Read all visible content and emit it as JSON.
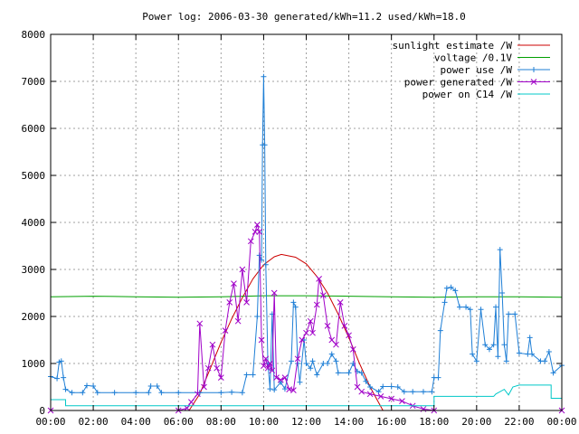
{
  "chart_data": {
    "type": "line",
    "title": "Power log: 2006-03-30 generated/kWh=11.2 used/kWh=18.0",
    "xlabel": "",
    "ylabel": "",
    "ylim": [
      0,
      8000
    ],
    "xlim": [
      0,
      24
    ],
    "grid": true,
    "legend_position": "top-right",
    "x_ticks": [
      "00:00",
      "02:00",
      "04:00",
      "06:00",
      "08:00",
      "10:00",
      "12:00",
      "14:00",
      "16:00",
      "18:00",
      "20:00",
      "22:00",
      "00:00"
    ],
    "y_ticks": [
      "0",
      "1000",
      "2000",
      "3000",
      "4000",
      "5000",
      "6000",
      "7000",
      "8000"
    ],
    "series": [
      {
        "name": "sunlight estimate /W",
        "color": "#cc0000",
        "style": "line",
        "points": [
          [
            6.5,
            0
          ],
          [
            7,
            350
          ],
          [
            7.5,
            900
          ],
          [
            8,
            1450
          ],
          [
            8.5,
            1950
          ],
          [
            9,
            2400
          ],
          [
            9.5,
            2800
          ],
          [
            10,
            3100
          ],
          [
            10.5,
            3270
          ],
          [
            10.83,
            3320
          ],
          [
            11.5,
            3260
          ],
          [
            12,
            3120
          ],
          [
            12.5,
            2850
          ],
          [
            13,
            2500
          ],
          [
            13.5,
            2050
          ],
          [
            14,
            1550
          ],
          [
            14.5,
            1000
          ],
          [
            15,
            500
          ],
          [
            15.6,
            0
          ]
        ]
      },
      {
        "name": "voltage /0.1V",
        "color": "#00a000",
        "style": "line",
        "points": [
          [
            0,
            2420
          ],
          [
            2,
            2430
          ],
          [
            4,
            2420
          ],
          [
            6,
            2410
          ],
          [
            8,
            2420
          ],
          [
            10,
            2440
          ],
          [
            12,
            2440
          ],
          [
            14,
            2430
          ],
          [
            16,
            2420
          ],
          [
            18,
            2410
          ],
          [
            20,
            2420
          ],
          [
            22,
            2420
          ],
          [
            24,
            2410
          ]
        ]
      },
      {
        "name": "power use /W",
        "color": "#1f7fd6",
        "style": "linespoints-plus",
        "points": [
          [
            0,
            720
          ],
          [
            0.3,
            680
          ],
          [
            0.4,
            1030
          ],
          [
            0.5,
            1050
          ],
          [
            0.6,
            700
          ],
          [
            0.7,
            450
          ],
          [
            1,
            380
          ],
          [
            1.5,
            380
          ],
          [
            1.7,
            530
          ],
          [
            2,
            520
          ],
          [
            2.2,
            380
          ],
          [
            3,
            380
          ],
          [
            4,
            380
          ],
          [
            4.6,
            380
          ],
          [
            4.7,
            520
          ],
          [
            5,
            520
          ],
          [
            5.2,
            380
          ],
          [
            6,
            380
          ],
          [
            7,
            380
          ],
          [
            8,
            380
          ],
          [
            8.5,
            390
          ],
          [
            9,
            380
          ],
          [
            9.2,
            760
          ],
          [
            9.5,
            760
          ],
          [
            9.7,
            2000
          ],
          [
            9.8,
            3300
          ],
          [
            9.9,
            3200
          ],
          [
            9.95,
            5650
          ],
          [
            10,
            7100
          ],
          [
            10.05,
            5650
          ],
          [
            10.1,
            3100
          ],
          [
            10.2,
            1000
          ],
          [
            10.3,
            460
          ],
          [
            10.4,
            2050
          ],
          [
            10.5,
            440
          ],
          [
            10.8,
            600
          ],
          [
            11,
            460
          ],
          [
            11.3,
            1050
          ],
          [
            11.4,
            2300
          ],
          [
            11.5,
            2200
          ],
          [
            11.6,
            1000
          ],
          [
            11.7,
            600
          ],
          [
            11.9,
            1500
          ],
          [
            12,
            1000
          ],
          [
            12.2,
            900
          ],
          [
            12.3,
            1050
          ],
          [
            12.5,
            760
          ],
          [
            12.8,
            1000
          ],
          [
            13,
            1000
          ],
          [
            13.2,
            1200
          ],
          [
            13.4,
            1050
          ],
          [
            13.5,
            800
          ],
          [
            14,
            800
          ],
          [
            14.2,
            1000
          ],
          [
            14.4,
            830
          ],
          [
            14.6,
            800
          ],
          [
            14.8,
            620
          ],
          [
            15,
            500
          ],
          [
            15.4,
            400
          ],
          [
            15.6,
            510
          ],
          [
            16,
            510
          ],
          [
            16.3,
            500
          ],
          [
            16.6,
            400
          ],
          [
            17,
            400
          ],
          [
            17.5,
            400
          ],
          [
            17.9,
            400
          ],
          [
            18,
            700
          ],
          [
            18.2,
            700
          ],
          [
            18.3,
            1700
          ],
          [
            18.5,
            2300
          ],
          [
            18.6,
            2600
          ],
          [
            18.8,
            2620
          ],
          [
            19,
            2550
          ],
          [
            19.2,
            2200
          ],
          [
            19.5,
            2200
          ],
          [
            19.7,
            2150
          ],
          [
            19.8,
            1200
          ],
          [
            20,
            1050
          ],
          [
            20.2,
            2150
          ],
          [
            20.4,
            1400
          ],
          [
            20.6,
            1300
          ],
          [
            20.8,
            1400
          ],
          [
            20.9,
            2200
          ],
          [
            21,
            1150
          ],
          [
            21.1,
            3420
          ],
          [
            21.2,
            2500
          ],
          [
            21.3,
            1400
          ],
          [
            21.4,
            1050
          ],
          [
            21.5,
            2050
          ],
          [
            21.8,
            2050
          ],
          [
            22,
            1220
          ],
          [
            22.4,
            1200
          ],
          [
            22.5,
            1550
          ],
          [
            22.6,
            1200
          ],
          [
            23,
            1050
          ],
          [
            23.2,
            1050
          ],
          [
            23.4,
            1250
          ],
          [
            23.6,
            800
          ],
          [
            24,
            960
          ]
        ]
      },
      {
        "name": "power generated /W",
        "color": "#a000c8",
        "style": "linespoints-x",
        "points": [
          [
            0,
            0
          ],
          [
            6,
            0
          ],
          [
            6.4,
            50
          ],
          [
            6.6,
            180
          ],
          [
            6.9,
            350
          ],
          [
            7,
            1850
          ],
          [
            7.2,
            500
          ],
          [
            7.4,
            900
          ],
          [
            7.6,
            1400
          ],
          [
            7.8,
            900
          ],
          [
            8,
            700
          ],
          [
            8.2,
            1700
          ],
          [
            8.4,
            2300
          ],
          [
            8.6,
            2700
          ],
          [
            8.8,
            1900
          ],
          [
            9,
            3000
          ],
          [
            9.2,
            2300
          ],
          [
            9.4,
            3600
          ],
          [
            9.6,
            3800
          ],
          [
            9.7,
            3950
          ],
          [
            9.8,
            3800
          ],
          [
            9.9,
            1500
          ],
          [
            10,
            950
          ],
          [
            10.1,
            1100
          ],
          [
            10.2,
            900
          ],
          [
            10.3,
            1000
          ],
          [
            10.4,
            850
          ],
          [
            10.5,
            2500
          ],
          [
            10.6,
            700
          ],
          [
            10.8,
            650
          ],
          [
            11,
            700
          ],
          [
            11.2,
            450
          ],
          [
            11.4,
            430
          ],
          [
            11.6,
            1100
          ],
          [
            11.8,
            1500
          ],
          [
            12,
            1650
          ],
          [
            12.2,
            1900
          ],
          [
            12.3,
            1650
          ],
          [
            12.5,
            2250
          ],
          [
            12.6,
            2800
          ],
          [
            12.8,
            2450
          ],
          [
            13,
            1800
          ],
          [
            13.2,
            1500
          ],
          [
            13.4,
            1400
          ],
          [
            13.6,
            2300
          ],
          [
            13.8,
            1800
          ],
          [
            14,
            1600
          ],
          [
            14.2,
            1300
          ],
          [
            14.4,
            500
          ],
          [
            14.6,
            400
          ],
          [
            15,
            350
          ],
          [
            15.5,
            300
          ],
          [
            16,
            250
          ],
          [
            16.5,
            200
          ],
          [
            17,
            100
          ],
          [
            17.5,
            30
          ],
          [
            18,
            0
          ],
          [
            24,
            0
          ]
        ]
      },
      {
        "name": "power on C14 /W",
        "color": "#00c8c8",
        "style": "line",
        "points": [
          [
            0,
            230
          ],
          [
            0.7,
            230
          ],
          [
            0.7,
            100
          ],
          [
            18,
            100
          ],
          [
            18,
            300
          ],
          [
            20.8,
            300
          ],
          [
            20.9,
            350
          ],
          [
            21.3,
            450
          ],
          [
            21.5,
            330
          ],
          [
            21.7,
            500
          ],
          [
            22,
            540
          ],
          [
            23.5,
            540
          ],
          [
            23.5,
            260
          ],
          [
            24,
            260
          ]
        ]
      }
    ]
  }
}
